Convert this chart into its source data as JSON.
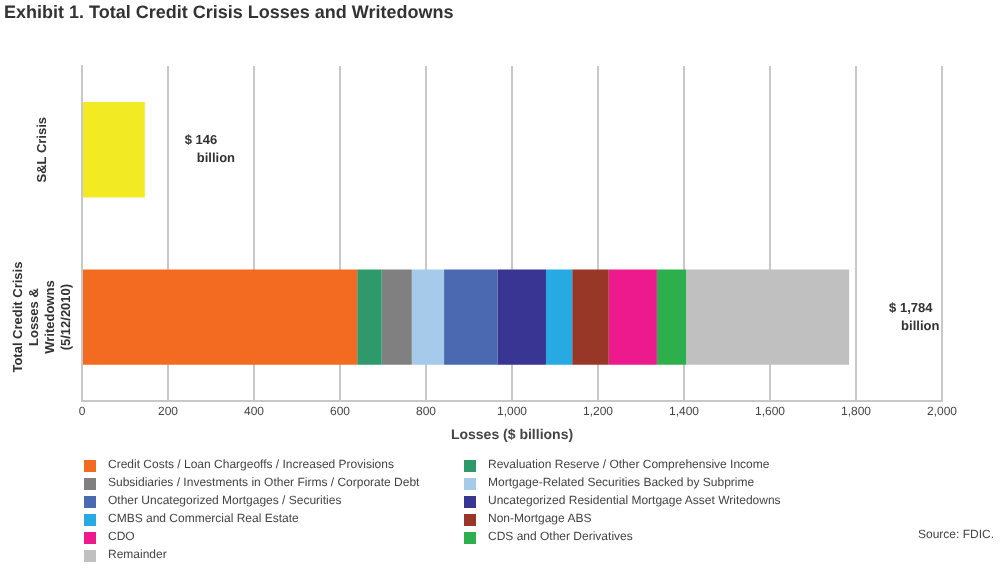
{
  "chart_data": {
    "type": "bar",
    "title": "Exhibit 1. Total Credit Crisis Losses and Writedowns",
    "categories": [
      "S&L Crisis",
      "Total Credit Crisis Losses & Writedowns (5/12/2010)"
    ],
    "orientation": "horizontal",
    "stacked": true,
    "series": [
      {
        "color": "#f2ea23",
        "values": [
          146,
          null
        ]
      },
      {
        "name": "Credit Costs / Loan Chargeoffs / Increased Provisions",
        "color": "#f26b21",
        "values": [
          null,
          640
        ]
      },
      {
        "name": "Revaluation Reserve / Other Comprehensive Income",
        "color": "#2e9a6c",
        "values": [
          null,
          57
        ]
      },
      {
        "name": "Subsidiaries / Investments in Other Firms / Corporate Debt",
        "color": "#808080",
        "values": [
          null,
          70
        ]
      },
      {
        "name": "Mortgage-Related Securities Backed by Subprime",
        "color": "#a6cbea",
        "values": [
          null,
          75
        ]
      },
      {
        "name": "Other Uncategorized Mortgages / Securities",
        "color": "#4a69b0",
        "values": [
          null,
          124
        ]
      },
      {
        "name": "Uncategorized Residential Mortgage Asset Writedowns",
        "color": "#393592",
        "values": [
          null,
          113
        ]
      },
      {
        "name": "CMBS and Commercial Real Estate",
        "color": "#27a9e1",
        "values": [
          null,
          61
        ]
      },
      {
        "name": "Non-Mortgage ABS",
        "color": "#983627",
        "values": [
          null,
          85
        ]
      },
      {
        "name": "CDO",
        "color": "#ec1a8c",
        "values": [
          null,
          112
        ]
      },
      {
        "name": "CDS and Other Derivatives",
        "color": "#2db04b",
        "values": [
          null,
          68
        ]
      },
      {
        "name": "Remainder",
        "color": "#c0c0c0",
        "values": [
          null,
          379
        ]
      }
    ],
    "totals": [
      "$ 146 billion",
      "$ 1,784 billion"
    ],
    "xlabel": "Losses ($ billions)",
    "xlim": [
      0,
      2000
    ],
    "xticks": [
      {
        "value": 0,
        "label": "0"
      },
      {
        "value": 200,
        "label": "200"
      },
      {
        "value": 400,
        "label": "400"
      },
      {
        "value": 600,
        "label": "600"
      },
      {
        "value": 800,
        "label": "800"
      },
      {
        "value": 1000,
        "label": "1,000"
      },
      {
        "value": 1200,
        "label": "1,200"
      },
      {
        "value": 1400,
        "label": "1,400"
      },
      {
        "value": 1600,
        "label": "1,600"
      },
      {
        "value": 1800,
        "label": "1,800"
      },
      {
        "value": 2000,
        "label": "2,000"
      }
    ],
    "grid": "x",
    "legend": "bottom",
    "annotations": [
      "Source: FDIC."
    ]
  }
}
